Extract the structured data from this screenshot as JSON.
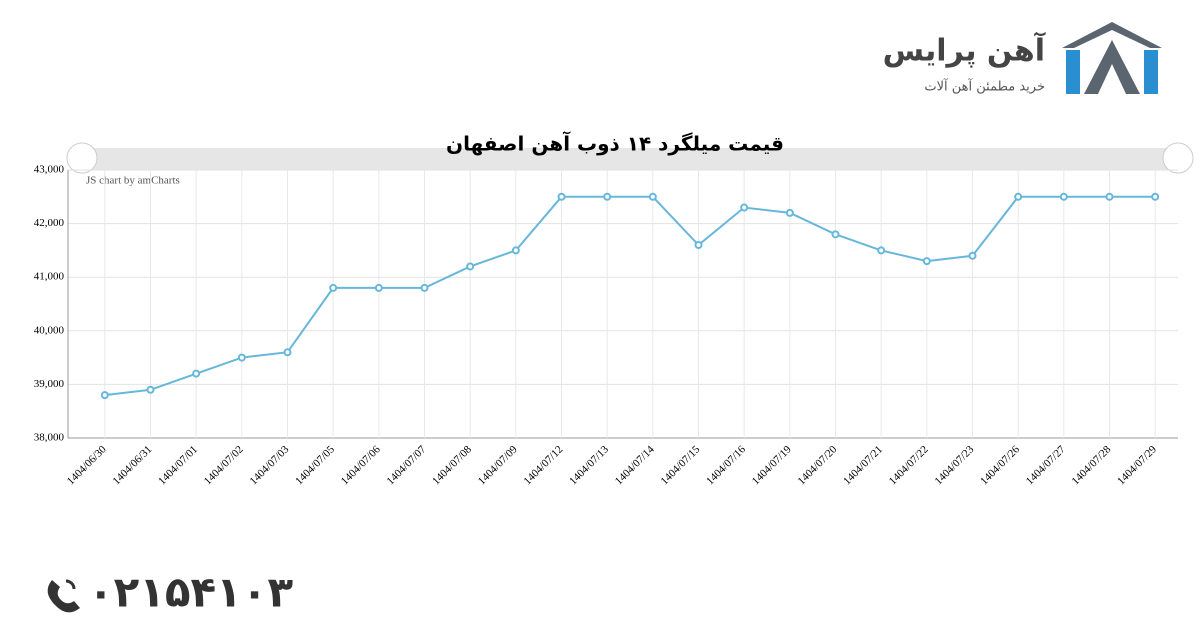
{
  "header": {
    "brand": "آهن پرایس",
    "slogan": "خرید مطمئن آهن آلات"
  },
  "chart_data": {
    "type": "line",
    "title": "قیمت میلگرد ۱۴ ذوب آهن اصفهان",
    "credit": "JS chart by amCharts",
    "categories": [
      "1404/06/30",
      "1404/06/31",
      "1404/07/01",
      "1404/07/02",
      "1404/07/03",
      "1404/07/05",
      "1404/07/06",
      "1404/07/07",
      "1404/07/08",
      "1404/07/09",
      "1404/07/12",
      "1404/07/13",
      "1404/07/14",
      "1404/07/15",
      "1404/07/16",
      "1404/07/19",
      "1404/07/20",
      "1404/07/21",
      "1404/07/22",
      "1404/07/23",
      "1404/07/26",
      "1404/07/27",
      "1404/07/28",
      "1404/07/29"
    ],
    "values": [
      38800,
      38900,
      39200,
      39500,
      39600,
      40800,
      40800,
      40800,
      41200,
      41500,
      42500,
      42500,
      42500,
      41600,
      42300,
      42200,
      41800,
      41500,
      41300,
      41400,
      42500,
      42500,
      42500,
      42500
    ],
    "color": "#67b7dc",
    "ylim": [
      38000,
      43000
    ],
    "yticks": [
      {
        "value": 38000,
        "label": "38,000"
      },
      {
        "value": 39000,
        "label": "39,000"
      },
      {
        "value": 40000,
        "label": "40,000"
      },
      {
        "value": 41000,
        "label": "41,000"
      },
      {
        "value": 42000,
        "label": "42,000"
      },
      {
        "value": 43000,
        "label": "43,000"
      }
    ],
    "grid": true
  },
  "footer": {
    "phone": "۰۲۱۵۴۱۰۳"
  }
}
